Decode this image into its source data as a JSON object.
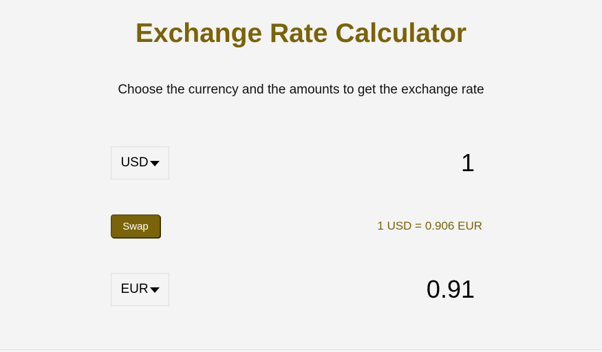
{
  "header": {
    "title": "Exchange Rate Calculator",
    "subtitle": "Choose the currency and the amounts to get the exchange rate"
  },
  "from": {
    "currency": "USD",
    "amount": "1"
  },
  "swap": {
    "label": "Swap",
    "rate_text": "1 USD = 0.906 EUR"
  },
  "to": {
    "currency": "EUR",
    "amount": "0.91"
  },
  "colors": {
    "accent": "#7a6308",
    "background": "#f4f4f4"
  },
  "icons": {
    "dropdown": "caret-down-icon"
  }
}
